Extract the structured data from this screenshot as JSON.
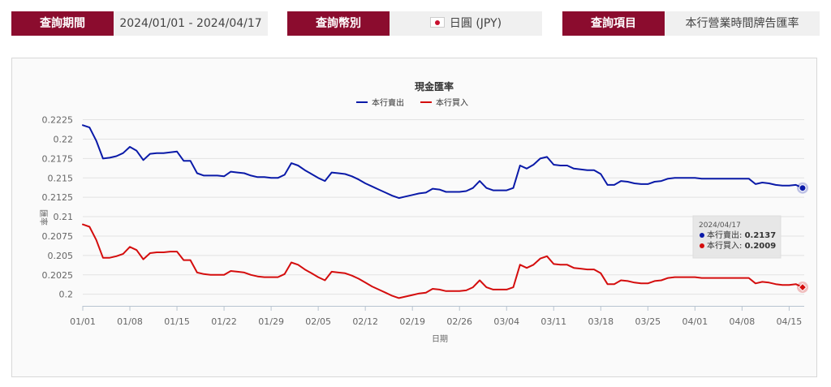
{
  "filters": {
    "period_label": "查詢期間",
    "period_value": "2024/01/01 - 2024/04/17",
    "currency_label": "查詢幣別",
    "currency_value": "日圓 (JPY)",
    "item_label": "查詢項目",
    "item_value": "本行營業時間牌告匯率"
  },
  "colors": {
    "accent": "#8b0c2e",
    "sell": "#0a1aa8",
    "buy": "#d40d0d"
  },
  "chart_data": {
    "type": "line",
    "title": "現金匯率",
    "xlabel": "日期",
    "ylabel": "匯率",
    "x_start": "2024-01-01",
    "x_end": "2024-04-17",
    "xticks": [
      "01/01",
      "01/08",
      "01/15",
      "01/22",
      "01/29",
      "02/05",
      "02/12",
      "02/19",
      "02/26",
      "03/04",
      "03/11",
      "03/18",
      "03/25",
      "04/01",
      "04/08",
      "04/15"
    ],
    "ylim": [
      0.1985,
      0.2235
    ],
    "yticks": [
      0.2,
      0.2025,
      0.205,
      0.2075,
      0.21,
      0.2125,
      0.215,
      0.2175,
      0.22,
      0.2225
    ],
    "ytick_labels": [
      "0.2",
      "0.2025",
      "0.205",
      "0.2075",
      "0.21",
      "0.2125",
      "0.215",
      "0.2175",
      "0.22",
      "0.2225"
    ],
    "legend_position": "top-center",
    "grid": "horizontal",
    "series": [
      {
        "name": "本行賣出",
        "color": "#0a1aa8",
        "points": [
          [
            "2024-01-01",
            0.2218
          ],
          [
            "2024-01-02",
            0.2215
          ],
          [
            "2024-01-03",
            0.2198
          ],
          [
            "2024-01-04",
            0.2175
          ],
          [
            "2024-01-05",
            0.2176
          ],
          [
            "2024-01-06",
            0.2178
          ],
          [
            "2024-01-07",
            0.2182
          ],
          [
            "2024-01-08",
            0.219
          ],
          [
            "2024-01-09",
            0.2185
          ],
          [
            "2024-01-10",
            0.2173
          ],
          [
            "2024-01-11",
            0.2181
          ],
          [
            "2024-01-12",
            0.2182
          ],
          [
            "2024-01-13",
            0.2182
          ],
          [
            "2024-01-14",
            0.2183
          ],
          [
            "2024-01-15",
            0.2184
          ],
          [
            "2024-01-16",
            0.2172
          ],
          [
            "2024-01-17",
            0.2172
          ],
          [
            "2024-01-18",
            0.2156
          ],
          [
            "2024-01-19",
            0.2153
          ],
          [
            "2024-01-20",
            0.2153
          ],
          [
            "2024-01-21",
            0.2153
          ],
          [
            "2024-01-22",
            0.2152
          ],
          [
            "2024-01-23",
            0.2158
          ],
          [
            "2024-01-24",
            0.2157
          ],
          [
            "2024-01-25",
            0.2156
          ],
          [
            "2024-01-26",
            0.2153
          ],
          [
            "2024-01-27",
            0.2151
          ],
          [
            "2024-01-28",
            0.2151
          ],
          [
            "2024-01-29",
            0.215
          ],
          [
            "2024-01-30",
            0.215
          ],
          [
            "2024-01-31",
            0.2154
          ],
          [
            "2024-02-01",
            0.2169
          ],
          [
            "2024-02-02",
            0.2166
          ],
          [
            "2024-02-03",
            0.216
          ],
          [
            "2024-02-04",
            0.2155
          ],
          [
            "2024-02-05",
            0.215
          ],
          [
            "2024-02-06",
            0.2146
          ],
          [
            "2024-02-07",
            0.2157
          ],
          [
            "2024-02-08",
            0.2156
          ],
          [
            "2024-02-09",
            0.2155
          ],
          [
            "2024-02-10",
            0.2152
          ],
          [
            "2024-02-11",
            0.2148
          ],
          [
            "2024-02-12",
            0.2143
          ],
          [
            "2024-02-13",
            0.2139
          ],
          [
            "2024-02-14",
            0.2135
          ],
          [
            "2024-02-15",
            0.2131
          ],
          [
            "2024-02-16",
            0.2127
          ],
          [
            "2024-02-17",
            0.2124
          ],
          [
            "2024-02-18",
            0.2126
          ],
          [
            "2024-02-19",
            0.2128
          ],
          [
            "2024-02-20",
            0.213
          ],
          [
            "2024-02-21",
            0.2131
          ],
          [
            "2024-02-22",
            0.2136
          ],
          [
            "2024-02-23",
            0.2135
          ],
          [
            "2024-02-24",
            0.2132
          ],
          [
            "2024-02-25",
            0.2132
          ],
          [
            "2024-02-26",
            0.2132
          ],
          [
            "2024-02-27",
            0.2133
          ],
          [
            "2024-02-28",
            0.2137
          ],
          [
            "2024-02-29",
            0.2146
          ],
          [
            "2024-03-01",
            0.2137
          ],
          [
            "2024-03-02",
            0.2134
          ],
          [
            "2024-03-03",
            0.2134
          ],
          [
            "2024-03-04",
            0.2134
          ],
          [
            "2024-03-05",
            0.2137
          ],
          [
            "2024-03-06",
            0.2166
          ],
          [
            "2024-03-07",
            0.2162
          ],
          [
            "2024-03-08",
            0.2167
          ],
          [
            "2024-03-09",
            0.2175
          ],
          [
            "2024-03-10",
            0.2177
          ],
          [
            "2024-03-11",
            0.2167
          ],
          [
            "2024-03-12",
            0.2166
          ],
          [
            "2024-03-13",
            0.2166
          ],
          [
            "2024-03-14",
            0.2162
          ],
          [
            "2024-03-15",
            0.2161
          ],
          [
            "2024-03-16",
            0.216
          ],
          [
            "2024-03-17",
            0.216
          ],
          [
            "2024-03-18",
            0.2155
          ],
          [
            "2024-03-19",
            0.2141
          ],
          [
            "2024-03-20",
            0.2141
          ],
          [
            "2024-03-21",
            0.2146
          ],
          [
            "2024-03-22",
            0.2145
          ],
          [
            "2024-03-23",
            0.2143
          ],
          [
            "2024-03-24",
            0.2142
          ],
          [
            "2024-03-25",
            0.2142
          ],
          [
            "2024-03-26",
            0.2145
          ],
          [
            "2024-03-27",
            0.2146
          ],
          [
            "2024-03-28",
            0.2149
          ],
          [
            "2024-03-29",
            0.215
          ],
          [
            "2024-03-30",
            0.215
          ],
          [
            "2024-03-31",
            0.215
          ],
          [
            "2024-04-01",
            0.215
          ],
          [
            "2024-04-02",
            0.2149
          ],
          [
            "2024-04-03",
            0.2149
          ],
          [
            "2024-04-04",
            0.2149
          ],
          [
            "2024-04-05",
            0.2149
          ],
          [
            "2024-04-06",
            0.2149
          ],
          [
            "2024-04-07",
            0.2149
          ],
          [
            "2024-04-08",
            0.2149
          ],
          [
            "2024-04-09",
            0.2149
          ],
          [
            "2024-04-10",
            0.2142
          ],
          [
            "2024-04-11",
            0.2144
          ],
          [
            "2024-04-12",
            0.2143
          ],
          [
            "2024-04-13",
            0.2141
          ],
          [
            "2024-04-14",
            0.214
          ],
          [
            "2024-04-15",
            0.214
          ],
          [
            "2024-04-16",
            0.2141
          ],
          [
            "2024-04-17",
            0.2137
          ]
        ]
      },
      {
        "name": "本行買入",
        "color": "#d40d0d",
        "points": [
          [
            "2024-01-01",
            0.209
          ],
          [
            "2024-01-02",
            0.2087
          ],
          [
            "2024-01-03",
            0.207
          ],
          [
            "2024-01-04",
            0.2047
          ],
          [
            "2024-01-05",
            0.2047
          ],
          [
            "2024-01-06",
            0.2049
          ],
          [
            "2024-01-07",
            0.2052
          ],
          [
            "2024-01-08",
            0.2061
          ],
          [
            "2024-01-09",
            0.2057
          ],
          [
            "2024-01-10",
            0.2045
          ],
          [
            "2024-01-11",
            0.2053
          ],
          [
            "2024-01-12",
            0.2054
          ],
          [
            "2024-01-13",
            0.2054
          ],
          [
            "2024-01-14",
            0.2055
          ],
          [
            "2024-01-15",
            0.2055
          ],
          [
            "2024-01-16",
            0.2044
          ],
          [
            "2024-01-17",
            0.2044
          ],
          [
            "2024-01-18",
            0.2028
          ],
          [
            "2024-01-19",
            0.2026
          ],
          [
            "2024-01-20",
            0.2025
          ],
          [
            "2024-01-21",
            0.2025
          ],
          [
            "2024-01-22",
            0.2025
          ],
          [
            "2024-01-23",
            0.203
          ],
          [
            "2024-01-24",
            0.2029
          ],
          [
            "2024-01-25",
            0.2028
          ],
          [
            "2024-01-26",
            0.2025
          ],
          [
            "2024-01-27",
            0.2023
          ],
          [
            "2024-01-28",
            0.2022
          ],
          [
            "2024-01-29",
            0.2022
          ],
          [
            "2024-01-30",
            0.2022
          ],
          [
            "2024-01-31",
            0.2026
          ],
          [
            "2024-02-01",
            0.2041
          ],
          [
            "2024-02-02",
            0.2038
          ],
          [
            "2024-02-03",
            0.2032
          ],
          [
            "2024-02-04",
            0.2027
          ],
          [
            "2024-02-05",
            0.2022
          ],
          [
            "2024-02-06",
            0.2018
          ],
          [
            "2024-02-07",
            0.2029
          ],
          [
            "2024-02-08",
            0.2028
          ],
          [
            "2024-02-09",
            0.2027
          ],
          [
            "2024-02-10",
            0.2024
          ],
          [
            "2024-02-11",
            0.202
          ],
          [
            "2024-02-12",
            0.2015
          ],
          [
            "2024-02-13",
            0.201
          ],
          [
            "2024-02-14",
            0.2006
          ],
          [
            "2024-02-15",
            0.2002
          ],
          [
            "2024-02-16",
            0.1998
          ],
          [
            "2024-02-17",
            0.1995
          ],
          [
            "2024-02-18",
            0.1997
          ],
          [
            "2024-02-19",
            0.1999
          ],
          [
            "2024-02-20",
            0.2001
          ],
          [
            "2024-02-21",
            0.2002
          ],
          [
            "2024-02-22",
            0.2007
          ],
          [
            "2024-02-23",
            0.2006
          ],
          [
            "2024-02-24",
            0.2004
          ],
          [
            "2024-02-25",
            0.2004
          ],
          [
            "2024-02-26",
            0.2004
          ],
          [
            "2024-02-27",
            0.2005
          ],
          [
            "2024-02-28",
            0.2009
          ],
          [
            "2024-02-29",
            0.2018
          ],
          [
            "2024-03-01",
            0.2009
          ],
          [
            "2024-03-02",
            0.2006
          ],
          [
            "2024-03-03",
            0.2006
          ],
          [
            "2024-03-04",
            0.2006
          ],
          [
            "2024-03-05",
            0.2009
          ],
          [
            "2024-03-06",
            0.2038
          ],
          [
            "2024-03-07",
            0.2034
          ],
          [
            "2024-03-08",
            0.2038
          ],
          [
            "2024-03-09",
            0.2046
          ],
          [
            "2024-03-10",
            0.2049
          ],
          [
            "2024-03-11",
            0.2039
          ],
          [
            "2024-03-12",
            0.2038
          ],
          [
            "2024-03-13",
            0.2038
          ],
          [
            "2024-03-14",
            0.2034
          ],
          [
            "2024-03-15",
            0.2033
          ],
          [
            "2024-03-16",
            0.2032
          ],
          [
            "2024-03-17",
            0.2032
          ],
          [
            "2024-03-18",
            0.2027
          ],
          [
            "2024-03-19",
            0.2013
          ],
          [
            "2024-03-20",
            0.2013
          ],
          [
            "2024-03-21",
            0.2018
          ],
          [
            "2024-03-22",
            0.2017
          ],
          [
            "2024-03-23",
            0.2015
          ],
          [
            "2024-03-24",
            0.2014
          ],
          [
            "2024-03-25",
            0.2014
          ],
          [
            "2024-03-26",
            0.2017
          ],
          [
            "2024-03-27",
            0.2018
          ],
          [
            "2024-03-28",
            0.2021
          ],
          [
            "2024-03-29",
            0.2022
          ],
          [
            "2024-03-30",
            0.2022
          ],
          [
            "2024-03-31",
            0.2022
          ],
          [
            "2024-04-01",
            0.2022
          ],
          [
            "2024-04-02",
            0.2021
          ],
          [
            "2024-04-03",
            0.2021
          ],
          [
            "2024-04-04",
            0.2021
          ],
          [
            "2024-04-05",
            0.2021
          ],
          [
            "2024-04-06",
            0.2021
          ],
          [
            "2024-04-07",
            0.2021
          ],
          [
            "2024-04-08",
            0.2021
          ],
          [
            "2024-04-09",
            0.2021
          ],
          [
            "2024-04-10",
            0.2014
          ],
          [
            "2024-04-11",
            0.2016
          ],
          [
            "2024-04-12",
            0.2015
          ],
          [
            "2024-04-13",
            0.2013
          ],
          [
            "2024-04-14",
            0.2012
          ],
          [
            "2024-04-15",
            0.2012
          ],
          [
            "2024-04-16",
            0.2013
          ],
          [
            "2024-04-17",
            0.2009
          ]
        ]
      }
    ],
    "tooltip": {
      "date": "2024/04/17",
      "items": [
        {
          "label": "本行賣出:",
          "value": "0.2137",
          "color": "#0a1aa8"
        },
        {
          "label": "本行買入:",
          "value": "0.2009",
          "color": "#d40d0d"
        }
      ]
    }
  }
}
